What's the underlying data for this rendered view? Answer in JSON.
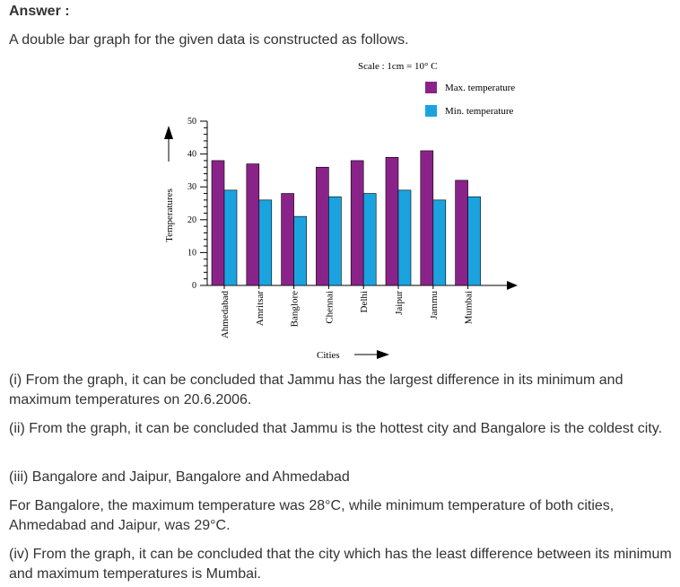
{
  "heading": "Answer :",
  "intro": "A double bar graph for the given data is constructed as follows.",
  "chart_data": {
    "type": "bar",
    "scale_note": "Scale : 1cm = 10° C",
    "categories": [
      "Ahmedabad",
      "Amritsar",
      "Banglore",
      "Chennai",
      "Delhi",
      "Jaipur",
      "Jammu",
      "Mumbai"
    ],
    "series": [
      {
        "name": "Max. temperature",
        "color": "#8a2389",
        "values": [
          38,
          37,
          28,
          36,
          38,
          39,
          41,
          32
        ]
      },
      {
        "name": "Min. temperature",
        "color": "#1ba3e0",
        "values": [
          29,
          26,
          21,
          27,
          28,
          29,
          26,
          27
        ]
      }
    ],
    "xlabel": "Cities",
    "ylabel": "Temperatures",
    "yticks": [
      0,
      10,
      20,
      30,
      40,
      50
    ],
    "ylim": [
      0,
      50
    ],
    "legend": "top-right",
    "grid": false
  },
  "answers": [
    "(i) From the graph, it can be concluded that Jammu has the largest difference in its minimum and maximum temperatures on 20.6.2006.",
    "(ii) From the graph, it can be concluded that Jammu is the hottest city and Bangalore is the coldest city.",
    "(iii) Bangalore and Jaipur, Bangalore and Ahmedabad",
    "For Bangalore, the maximum temperature was 28°C, while minimum temperature of both cities, Ahmedabad and Jaipur, was 29°C.",
    "(iv) From the graph, it can be concluded that the city which has the least difference between its minimum and maximum temperatures is Mumbai."
  ]
}
